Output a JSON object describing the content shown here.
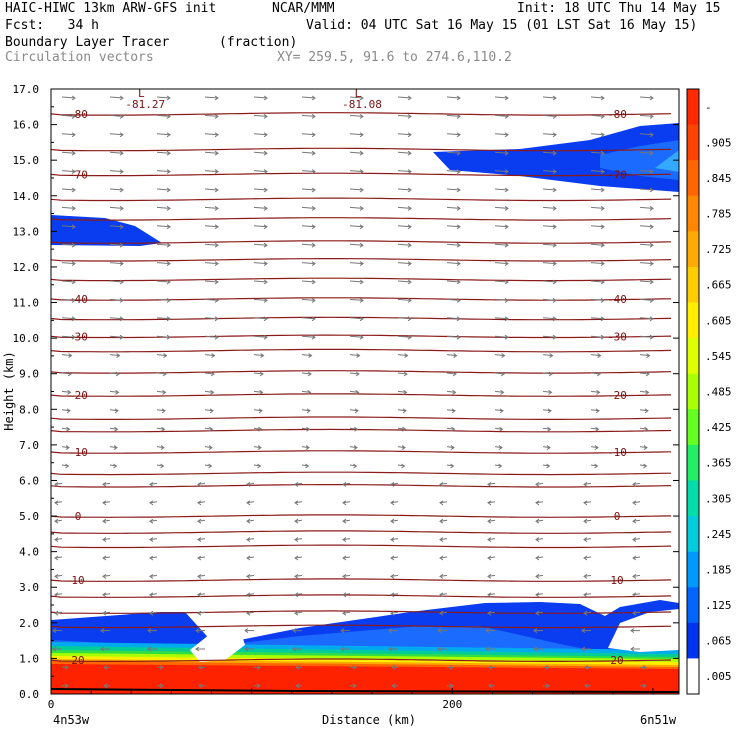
{
  "header": {
    "model": "HAIC-HIWC 13km ARW-GFS init",
    "org": "NCAR/MMM",
    "init": "Init: 18 UTC Thu 14 May 15",
    "fcst": "Fcst:   34 h",
    "valid": "Valid: 04 UTC Sat 16 May 15 (01 LST Sat 16 May 15)",
    "field": "Boundary Layer Tracer",
    "units": "(fraction)",
    "overlay": "Circulation vectors",
    "xy": "XY= 259.5, 91.6 to 274.6,110.2"
  },
  "chart_data": {
    "type": "heatmap",
    "title": "Boundary Layer Tracer",
    "xlabel": "Distance (km)",
    "ylabel": "Height (km)",
    "x_start_label": "4n53w",
    "x_end_label": "6n51w",
    "xticks": [
      0,
      200
    ],
    "xlim": [
      0,
      313
    ],
    "ylim": [
      0,
      17
    ],
    "yticks": [
      "0.0",
      "1.0",
      "2.0",
      "3.0",
      "4.0",
      "5.0",
      "6.0",
      "7.0",
      "8.0",
      "9.0",
      "10.0",
      "11.0",
      "12.0",
      "13.0",
      "14.0",
      "15.0",
      "16.0",
      "17.0"
    ],
    "colorbar": {
      "labels": [
        "-",
        ".905",
        ".845",
        ".785",
        ".725",
        ".665",
        ".605",
        ".545",
        ".485",
        ".425",
        ".365",
        ".305",
        ".245",
        ".185",
        ".125",
        ".065",
        ".005"
      ],
      "colors": [
        "#ff2a00",
        "#ff4400",
        "#ff6600",
        "#ff8800",
        "#ffaa00",
        "#ffcc00",
        "#ffee00",
        "#ddff00",
        "#aaff00",
        "#66ff22",
        "#22ee66",
        "#00ddaa",
        "#00ccdd",
        "#0099ff",
        "#0066ff",
        "#0033ee",
        "#ffffff"
      ]
    },
    "isotherms": [
      {
        "label": "-80",
        "height": 16.3
      },
      {
        "label": "-70",
        "height": 14.6
      },
      {
        "label": "-40",
        "height": 11.1
      },
      {
        "label": "-30",
        "height": 10.05
      },
      {
        "label": "-20",
        "height": 8.4
      },
      {
        "label": "-10",
        "height": 6.8
      },
      {
        "label": "0",
        "height": 5.0
      },
      {
        "label": "10",
        "height": 3.2
      },
      {
        "label": "20",
        "height": 0.95
      }
    ],
    "extra_temperature_lines": [
      15.3,
      13.9,
      13.35,
      12.7,
      12.2,
      11.65,
      10.55,
      9.65,
      9.05,
      7.75,
      7.4,
      6.2,
      5.85,
      4.55,
      4.15,
      2.75,
      2.3,
      1.9
    ],
    "minima": [
      {
        "label": "-81.27",
        "x": 45,
        "height": 16.6
      },
      {
        "label": "-81.08",
        "x": 153,
        "height": 16.6
      }
    ],
    "grid": false
  }
}
